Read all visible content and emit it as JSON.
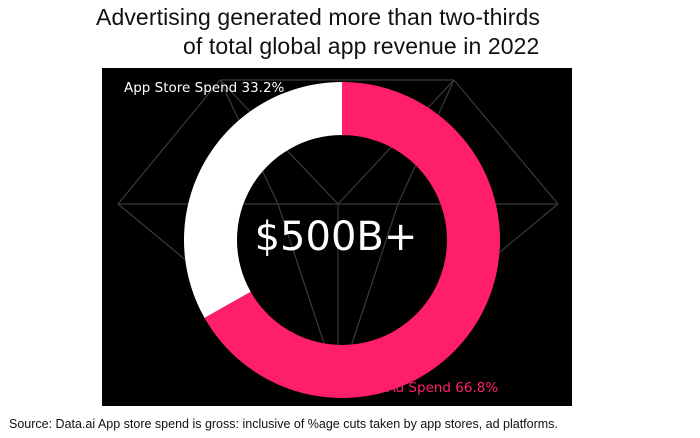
{
  "title": {
    "line1": "Advertising generated more than two-thirds",
    "line2": "of total global app revenue in 2022"
  },
  "source_note": "Source: Data.ai  App store spend is gross: inclusive of %age cuts taken by app stores, ad platforms.",
  "colors": {
    "panel_background": "#000000",
    "mobile_ad": "#ff1f69",
    "app_store": "#ffffff",
    "decor_lines": "#3a3a3a",
    "center_text": "#ffffff"
  },
  "chart_data": {
    "type": "pie",
    "variant": "donut",
    "center_label": "$500B+",
    "slices": [
      {
        "label": "Mobile Ad Spend",
        "value": 66.8,
        "display": "Mobile Ad Spend 66.8%",
        "color": "#ff1f69"
      },
      {
        "label": "App Store Spend",
        "value": 33.2,
        "display": "App Store Spend 33.2%",
        "color": "#ffffff"
      }
    ],
    "start_angle_deg": 0,
    "direction": "clockwise",
    "legend": "none"
  }
}
